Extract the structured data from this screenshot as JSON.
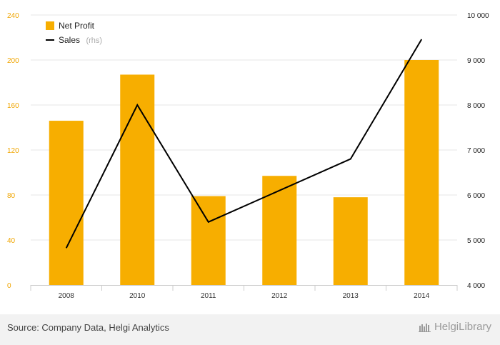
{
  "chart_data": {
    "type": "bar+line",
    "categories": [
      "2008",
      "2010",
      "2011",
      "2012",
      "2013",
      "2014"
    ],
    "series": [
      {
        "name": "Net Profit",
        "kind": "bar",
        "axis": "left",
        "color": "#f7ae00",
        "values": [
          146,
          187,
          79,
          97,
          78,
          200
        ]
      },
      {
        "name": "Sales",
        "suffix": "(rhs)",
        "kind": "line",
        "axis": "right",
        "color": "#000000",
        "values": [
          4820,
          8000,
          5400,
          6100,
          6800,
          9460
        ]
      }
    ],
    "y_left": {
      "lim": [
        0,
        240
      ],
      "ticks": [
        "0",
        "40",
        "80",
        "120",
        "160",
        "200",
        "240"
      ]
    },
    "y_right": {
      "lim": [
        4000,
        10000
      ],
      "ticks": [
        "4 000",
        "5 000",
        "6 000",
        "7 000",
        "8 000",
        "9 000",
        "10 000"
      ]
    },
    "grid": true,
    "legend": "top-left"
  },
  "footer": {
    "source": "Source: Company Data, Helgi Analytics",
    "brand": "HelgiLibrary"
  }
}
